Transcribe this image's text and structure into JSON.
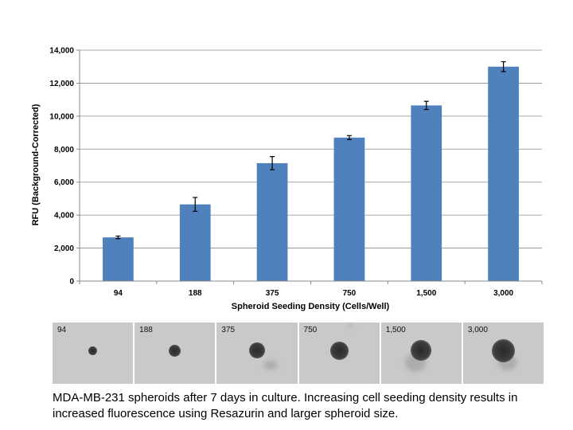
{
  "chart_data": {
    "type": "bar",
    "categories": [
      "94",
      "188",
      "375",
      "750",
      "1,500",
      "3,000"
    ],
    "values": [
      2650,
      4650,
      7150,
      8700,
      10650,
      13000
    ],
    "errors": [
      80,
      420,
      400,
      120,
      250,
      300
    ],
    "xlabel": "Spheroid Seeding Density (Cells/Well)",
    "ylabel": "RFU (Background-Corrected)",
    "ylim": [
      0,
      14000
    ],
    "yticks": [
      "0",
      "2,000",
      "4,000",
      "6,000",
      "8,000",
      "10,000",
      "12,000",
      "14,000"
    ],
    "grid": true,
    "bar_color": "#4f81bd"
  },
  "images": {
    "tiles": [
      {
        "label": "94",
        "size": 0.14
      },
      {
        "label": "188",
        "size": 0.19
      },
      {
        "label": "375",
        "size": 0.26
      },
      {
        "label": "750",
        "size": 0.3
      },
      {
        "label": "1,500",
        "size": 0.34
      },
      {
        "label": "3,000",
        "size": 0.38
      }
    ]
  },
  "caption": "MDA-MB-231 spheroids after 7 days in culture.  Increasing cell seeding density results in increased fluorescence using Resazurin and larger spheroid size."
}
